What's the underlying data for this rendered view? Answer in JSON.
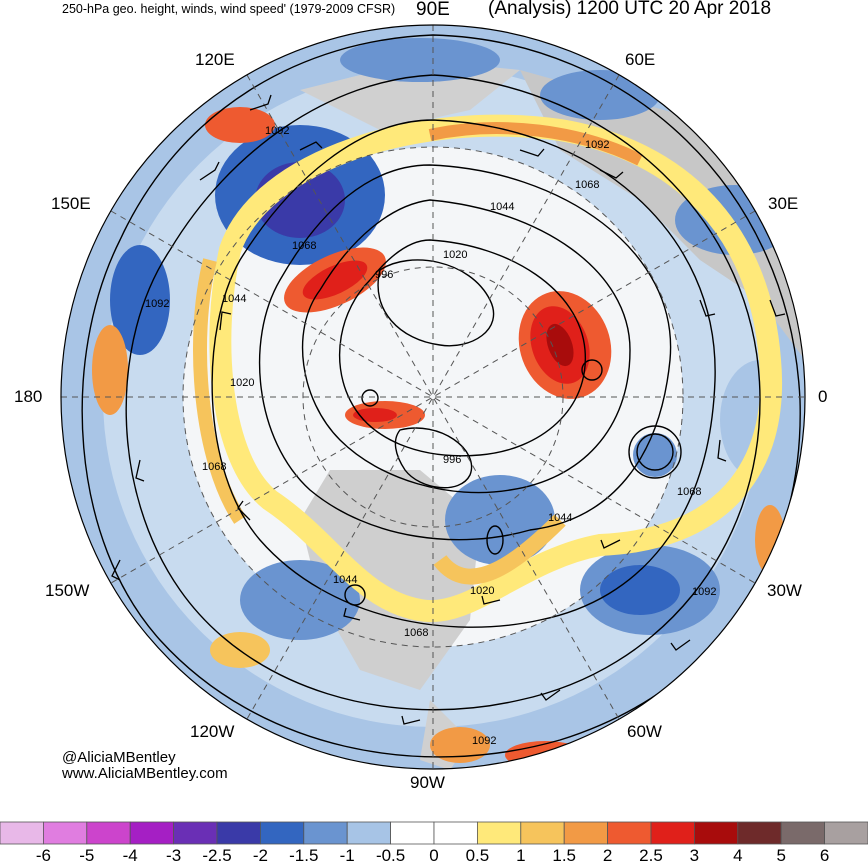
{
  "header": {
    "title_left": "250-hPa geo. height, winds, wind speed' (1979-2009 CFSR)",
    "title_right": "(Analysis) 1200 UTC 20 Apr 2018"
  },
  "longitude_labels": {
    "e90": "90E",
    "e60": "60E",
    "e30": "30E",
    "zero": "0",
    "w30": "30W",
    "w60": "60W",
    "w90": "90W",
    "w120": "120W",
    "w150": "150W",
    "d180": "180",
    "e150": "150E",
    "e120": "120E"
  },
  "contour_labels": [
    "1092",
    "1092",
    "1068",
    "1044",
    "1068",
    "1044",
    "1020",
    "996",
    "1020",
    "996",
    "1068",
    "1044",
    "1044",
    "1020",
    "1068",
    "1092",
    "1068",
    "1092"
  ],
  "credits": {
    "handle": "@AliciaMBentley",
    "website": "www.AliciaMBentley.com"
  },
  "colorbar": {
    "labels": [
      "-6",
      "-5",
      "-4",
      "-3",
      "-2.5",
      "-2",
      "-1.5",
      "-1",
      "-0.5",
      "0",
      "0.5",
      "1",
      "1.5",
      "2",
      "2.5",
      "3",
      "4",
      "5",
      "6"
    ],
    "colors": [
      "#e8b8e8",
      "#e07de0",
      "#cc44cc",
      "#a51fc4",
      "#6a2fb5",
      "#3a3aa8",
      "#3366c0",
      "#6a94d0",
      "#a7c4e6",
      "#ffffff",
      "#ffffff",
      "#ffe97a",
      "#f6c45c",
      "#f29a45",
      "#ee5a30",
      "#e0201a",
      "#a80c0c",
      "#6e2a2a",
      "#7a6a6a",
      "#a8a0a0"
    ]
  }
}
